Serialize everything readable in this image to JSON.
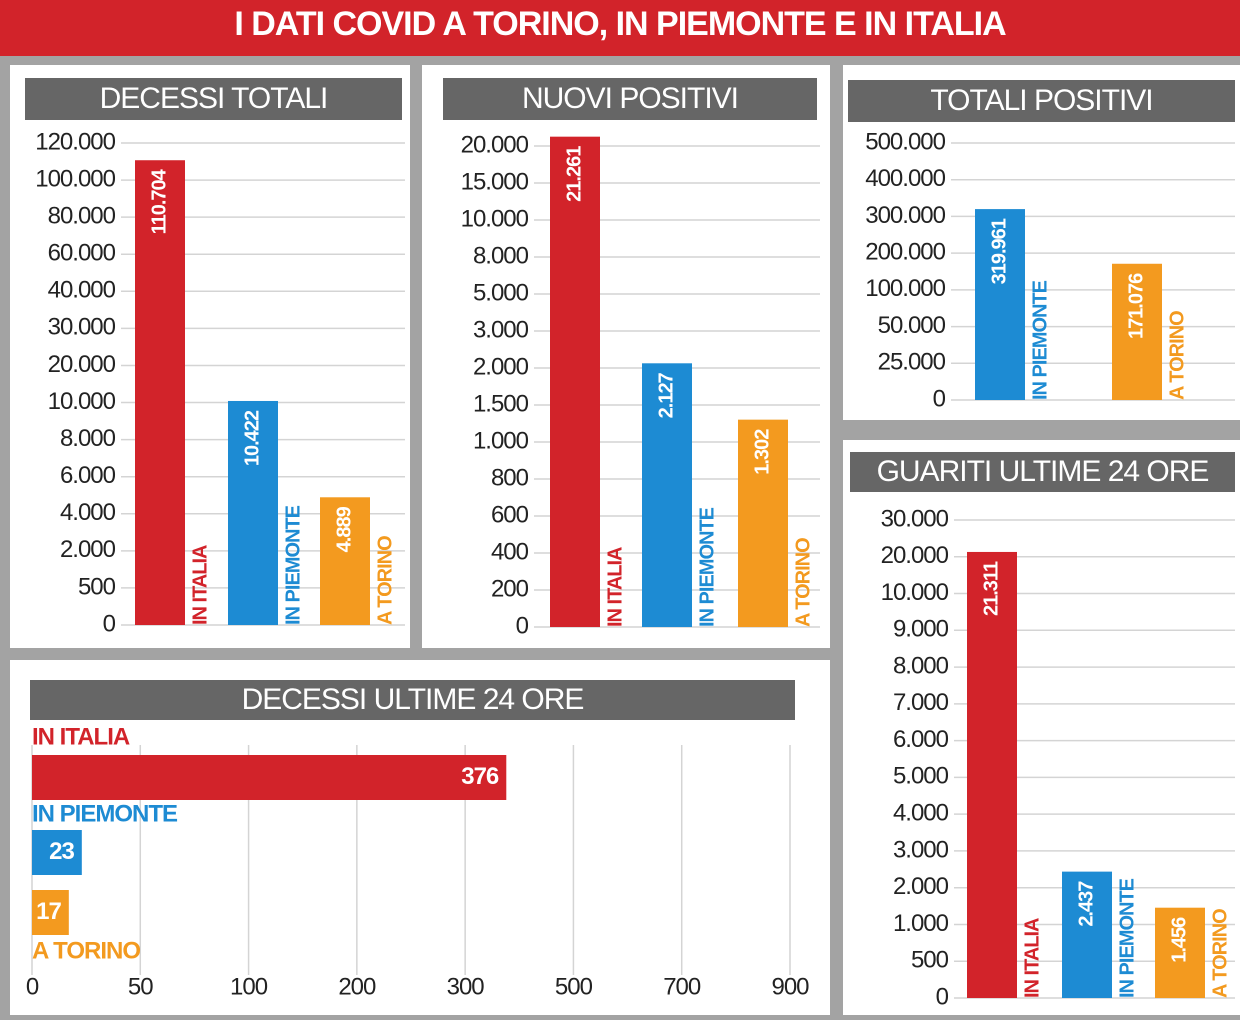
{
  "title": "I DATI COVID A TORINO, IN PIEMONTE E IN ITALIA",
  "chart_data": [
    {
      "type": "bar",
      "title": "DECESSI TOTALI",
      "categories": [
        "IN ITALIA",
        "IN PIEMONTE",
        "A TORINO"
      ],
      "values": [
        110704,
        10422,
        4889
      ],
      "value_labels": [
        "110.704",
        "10.422",
        "4.889"
      ],
      "colors": [
        "#d2232a",
        "#1d8bd3",
        "#f39a1f"
      ],
      "ylim": [
        0,
        120000
      ],
      "yticks": [
        0,
        500,
        {
          "value": 2000,
          "label": "2.000"
        },
        {
          "value": 4000,
          "label": "4.000"
        },
        {
          "value": 6000,
          "label": "6.000"
        },
        {
          "value": 8000,
          "label": "8.000"
        },
        {
          "value": 10000,
          "label": "10.000"
        },
        {
          "value": 20000,
          "label": "20.000"
        },
        {
          "value": 30000,
          "label": "30.000"
        },
        {
          "value": 40000,
          "label": "40.000"
        },
        {
          "value": 60000,
          "label": "60.000"
        },
        {
          "value": 80000,
          "label": "80.000"
        },
        {
          "value": 100000,
          "label": "100.000"
        },
        {
          "value": 120000,
          "label": "120.000"
        }
      ],
      "grid": true
    },
    {
      "type": "bar",
      "title": "NUOVI POSITIVI",
      "categories": [
        "IN ITALIA",
        "IN PIEMONTE",
        "A TORINO"
      ],
      "values": [
        21261,
        2127,
        1302
      ],
      "value_labels": [
        "21.261",
        "2.127",
        "1.302"
      ],
      "colors": [
        "#d2232a",
        "#1d8bd3",
        "#f39a1f"
      ],
      "ylim": [
        0,
        20000
      ],
      "yticks": [
        0,
        200,
        400,
        600,
        800,
        {
          "value": 1000,
          "label": "1.000"
        },
        {
          "value": 1500,
          "label": "1.500"
        },
        {
          "value": 2000,
          "label": "2.000"
        },
        {
          "value": 3000,
          "label": "3.000"
        },
        {
          "value": 5000,
          "label": "5.000"
        },
        {
          "value": 8000,
          "label": "8.000"
        },
        {
          "value": 10000,
          "label": "10.000"
        },
        {
          "value": 15000,
          "label": "15.000"
        },
        {
          "value": 20000,
          "label": "20.000"
        }
      ],
      "grid": true
    },
    {
      "type": "bar",
      "title": "TOTALI POSITIVI",
      "categories": [
        "IN PIEMONTE",
        "A TORINO"
      ],
      "values": [
        319961,
        171076
      ],
      "value_labels": [
        "319.961",
        "171.076"
      ],
      "colors": [
        "#1d8bd3",
        "#f39a1f"
      ],
      "ylim": [
        0,
        500000
      ],
      "yticks": [
        0,
        {
          "value": 25000,
          "label": "25.000"
        },
        {
          "value": 50000,
          "label": "50.000"
        },
        {
          "value": 100000,
          "label": "100.000"
        },
        {
          "value": 200000,
          "label": "200.000"
        },
        {
          "value": 300000,
          "label": "300.000"
        },
        {
          "value": 400000,
          "label": "400.000"
        },
        {
          "value": 500000,
          "label": "500.000"
        }
      ],
      "grid": true
    },
    {
      "type": "bar",
      "title": "GUARITI ULTIME 24 ORE",
      "categories": [
        "IN ITALIA",
        "IN PIEMONTE",
        "A TORINO"
      ],
      "values": [
        21311,
        2437,
        1456
      ],
      "value_labels": [
        "21.311",
        "2.437",
        "1.456"
      ],
      "colors": [
        "#d2232a",
        "#1d8bd3",
        "#f39a1f"
      ],
      "ylim": [
        0,
        30000
      ],
      "yticks": [
        0,
        500,
        {
          "value": 1000,
          "label": "1.000"
        },
        {
          "value": 2000,
          "label": "2.000"
        },
        {
          "value": 3000,
          "label": "3.000"
        },
        {
          "value": 4000,
          "label": "4.000"
        },
        {
          "value": 5000,
          "label": "5.000"
        },
        {
          "value": 6000,
          "label": "6.000"
        },
        {
          "value": 7000,
          "label": "7.000"
        },
        {
          "value": 8000,
          "label": "8.000"
        },
        {
          "value": 9000,
          "label": "9.000"
        },
        {
          "value": 10000,
          "label": "10.000"
        },
        {
          "value": 20000,
          "label": "20.000"
        },
        {
          "value": 30000,
          "label": "30.000"
        }
      ],
      "grid": true
    },
    {
      "type": "hbar",
      "title": "DECESSI ULTIME 24 ORE",
      "categories": [
        "IN ITALIA",
        "IN PIEMONTE",
        "A TORINO"
      ],
      "values": [
        376,
        23,
        17
      ],
      "colors": [
        "#d2232a",
        "#1d8bd3",
        "#f39a1f"
      ],
      "xlim": [
        0,
        900
      ],
      "xticks": [
        0,
        50,
        100,
        200,
        300,
        500,
        700,
        900
      ],
      "grid": true
    }
  ]
}
